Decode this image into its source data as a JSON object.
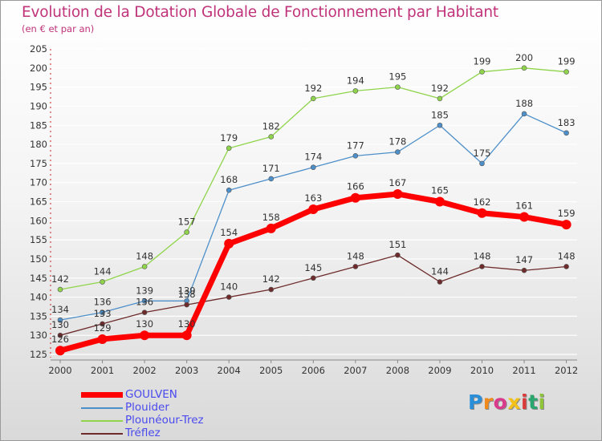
{
  "chart_data": {
    "type": "line",
    "title": "Evolution de la Dotation Globale de Fonctionnement par Habitant",
    "subtitle": "(en € et par an)",
    "xlabel": "",
    "ylabel": "",
    "categories": [
      "2000",
      "2001",
      "2002",
      "2003",
      "2004",
      "2005",
      "2006",
      "2007",
      "2008",
      "2009",
      "2010",
      "2011",
      "2012"
    ],
    "ylim": [
      125,
      205
    ],
    "yticks": [
      125,
      130,
      135,
      140,
      145,
      150,
      155,
      160,
      165,
      170,
      175,
      180,
      185,
      190,
      195,
      200,
      205
    ],
    "grid": "horizontal",
    "legend_position": "bottom-left",
    "series": [
      {
        "name": "GOULVEN",
        "color": "#ff0000",
        "values": [
          126,
          129,
          130,
          130,
          154,
          158,
          163,
          166,
          167,
          165,
          162,
          161,
          159
        ]
      },
      {
        "name": "Plouider",
        "color": "#4d8fc9",
        "values": [
          134,
          136,
          139,
          139,
          168,
          171,
          174,
          177,
          178,
          185,
          175,
          188,
          183
        ]
      },
      {
        "name": "Plounéour-Trez",
        "color": "#8fd44a",
        "values": [
          142,
          144,
          148,
          157,
          179,
          182,
          192,
          194,
          195,
          192,
          199,
          200,
          199
        ]
      },
      {
        "name": "Tréflez",
        "color": "#6e2b2b",
        "values": [
          130,
          133,
          136,
          138,
          140,
          142,
          145,
          148,
          151,
          144,
          148,
          147,
          148
        ]
      }
    ]
  },
  "brand": {
    "letters": [
      "P",
      "r",
      "o",
      "x",
      "i",
      "t",
      "i"
    ],
    "colors": [
      "#2a8fd8",
      "#f08a1c",
      "#d93a8c",
      "#f3c21a",
      "#d93a3a",
      "#2aa66f",
      "#8fc43a"
    ]
  }
}
